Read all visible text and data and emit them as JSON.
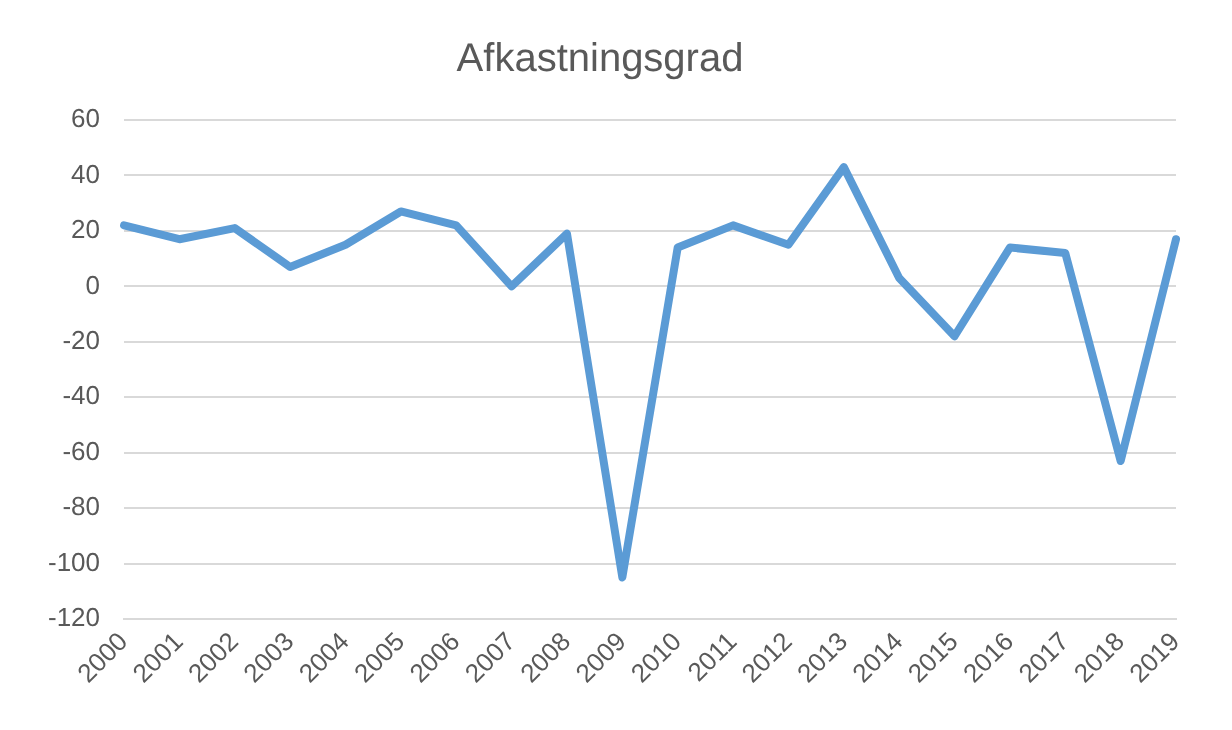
{
  "chart_data": {
    "type": "line",
    "title": "Afkastningsgrad",
    "categories": [
      "2000",
      "2001",
      "2002",
      "2003",
      "2004",
      "2005",
      "2006",
      "2007",
      "2008",
      "2009",
      "2010",
      "2011",
      "2012",
      "2013",
      "2014",
      "2015",
      "2016",
      "2017",
      "2018",
      "2019"
    ],
    "series": [
      {
        "color": "#5b9bd5",
        "values": [
          22,
          17,
          21,
          7,
          15,
          27,
          22,
          0,
          19,
          -105,
          14,
          22,
          15,
          43,
          3,
          -18,
          14,
          12,
          -63,
          17
        ]
      }
    ],
    "ylim": [
      -120,
      60
    ],
    "yticks": [
      -120,
      -100,
      -80,
      -60,
      -40,
      -20,
      0,
      20,
      40,
      60
    ],
    "grid": "y",
    "legend": false,
    "marker": "none",
    "line_style": "solid"
  }
}
